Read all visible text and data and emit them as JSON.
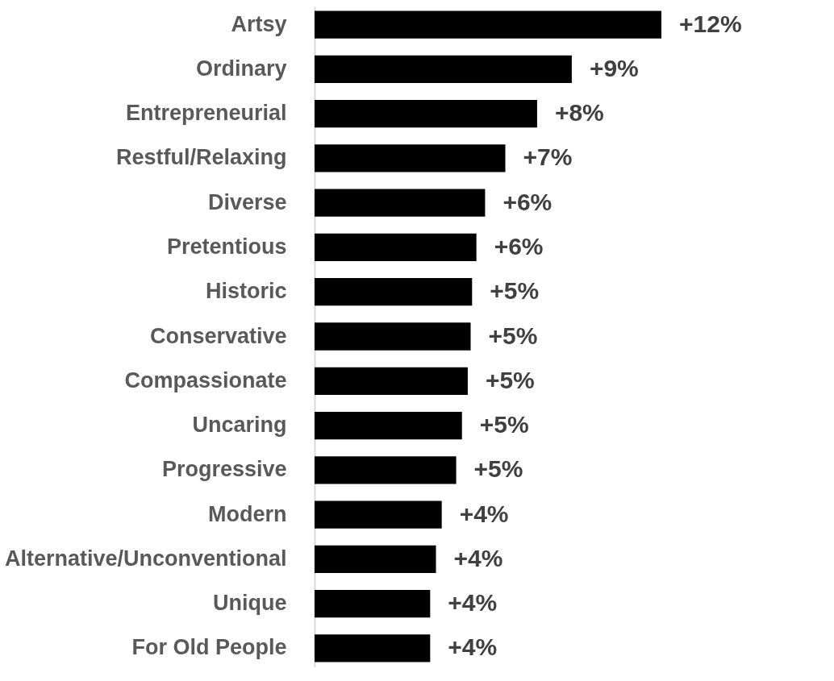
{
  "chart_data": {
    "type": "bar",
    "orientation": "horizontal",
    "color": "#000000",
    "categories": [
      "Artsy",
      "Ordinary",
      "Entrepreneurial",
      "Restful/Relaxing",
      "Diverse",
      "Pretentious",
      "Historic",
      "Conservative",
      "Compassionate",
      "Uncaring",
      "Progressive",
      "Modern",
      "Alternative/Unconventional",
      "Unique",
      "For Old People"
    ],
    "values": [
      12,
      8.9,
      7.7,
      6.6,
      5.9,
      5.6,
      5.45,
      5.4,
      5.3,
      5.1,
      4.9,
      4.4,
      4.2,
      4.0,
      4.0
    ],
    "value_labels": [
      "+12%",
      "+9%",
      "+8%",
      "+7%",
      "+6%",
      "+6%",
      "+5%",
      "+5%",
      "+5%",
      "+5%",
      "+5%",
      "+4%",
      "+4%",
      "+4%",
      "+4%"
    ],
    "grid": false
  }
}
